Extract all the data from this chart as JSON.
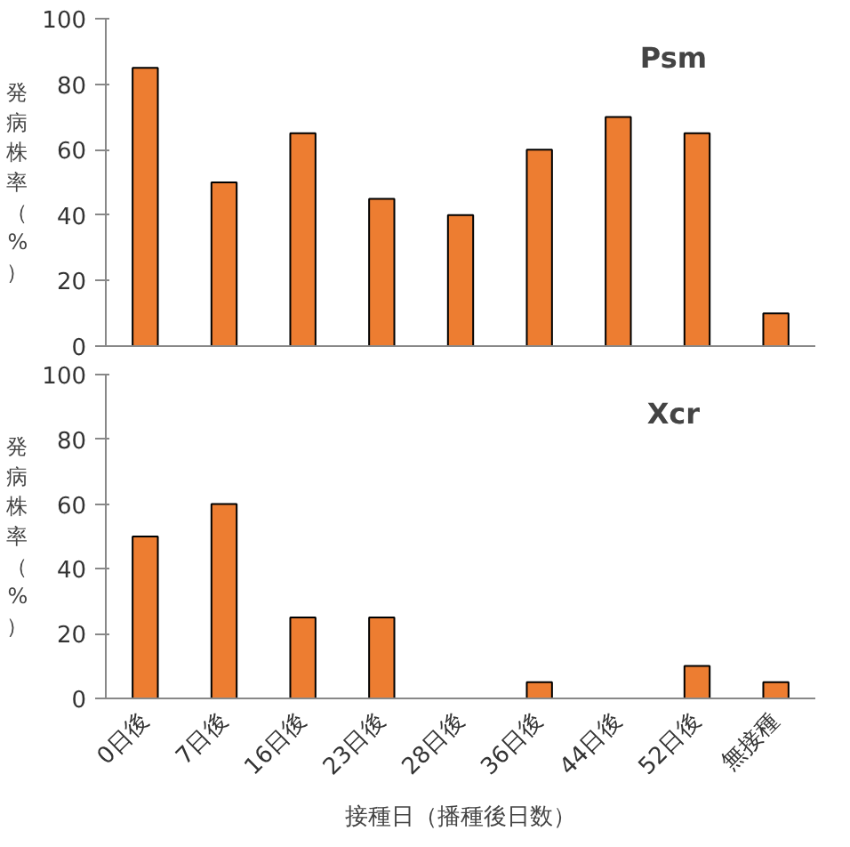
{
  "chart_data": [
    {
      "type": "bar",
      "title": "Psm",
      "ylabel": "発病株率（%）",
      "categories": [
        null,
        null,
        null,
        null,
        null,
        null,
        null,
        null,
        null
      ],
      "values": [
        85,
        50,
        65,
        45,
        40,
        60,
        70,
        65,
        10
      ],
      "color": "#ed7d31",
      "ylim": [
        0,
        100
      ],
      "yticks": [
        0,
        20,
        40,
        60,
        80,
        100
      ],
      "tick_labels": "y",
      "grid": false
    },
    {
      "type": "bar",
      "title": "Xcr",
      "ylabel": "発病株率（%）",
      "xlabel": "接種日（播種後日数）",
      "categories": [
        "0日後",
        "7日後",
        "16日後",
        "23日後",
        "28日後",
        "36日後",
        "44日後",
        "52日後",
        "無接種"
      ],
      "values": [
        50,
        60,
        25,
        25,
        0,
        5,
        0,
        10,
        5
      ],
      "color": "#ed7d31",
      "ylim": [
        0,
        100
      ],
      "yticks": [
        0,
        20,
        40,
        60,
        80,
        100
      ],
      "grid": false
    }
  ]
}
